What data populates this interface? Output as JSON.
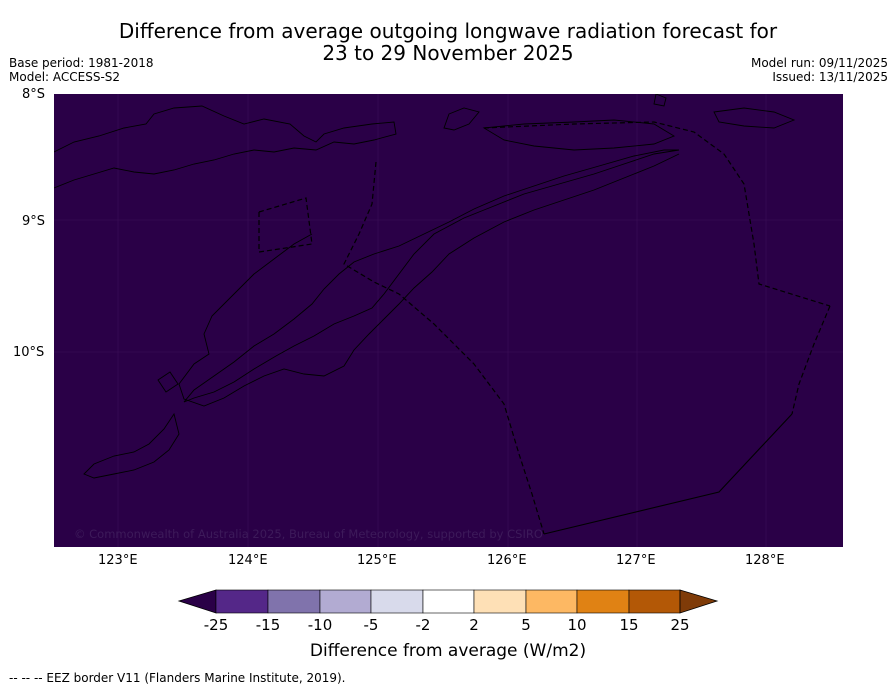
{
  "title": {
    "line1": "Difference from average outgoing longwave radiation forecast for",
    "line2": "23 to 29 November 2025"
  },
  "meta_left": {
    "base_period": "Base period: 1981-2018",
    "model": "Model: ACCESS-S2"
  },
  "meta_right": {
    "model_run": "Model run: 09/11/2025",
    "issued": "Issued: 13/11/2025"
  },
  "map": {
    "fill_color": "#2a0047",
    "lat_labels": [
      "8°S",
      "9°S",
      "10°S"
    ],
    "lon_labels": [
      "123°E",
      "124°E",
      "125°E",
      "126°E",
      "127°E",
      "128°E"
    ],
    "copyright": "© Commonwealth of Australia 2025, Bureau of Meteorology, supported by CSIRO"
  },
  "colorbar": {
    "label": "Difference from average (W/m2)",
    "ticks": [
      "-25",
      "-15",
      "-10",
      "-5",
      "-2",
      "2",
      "5",
      "10",
      "15",
      "25"
    ],
    "colors": [
      "#2a0047",
      "#542788",
      "#8073ac",
      "#b2abd2",
      "#d8daeb",
      "#ffffff",
      "#fee0b6",
      "#fdb863",
      "#e08214",
      "#b35806",
      "#7f3b08"
    ]
  },
  "legend": {
    "eez": "-- -- -- EEZ border V11 (Flanders Marine Institute, 2019)."
  }
}
